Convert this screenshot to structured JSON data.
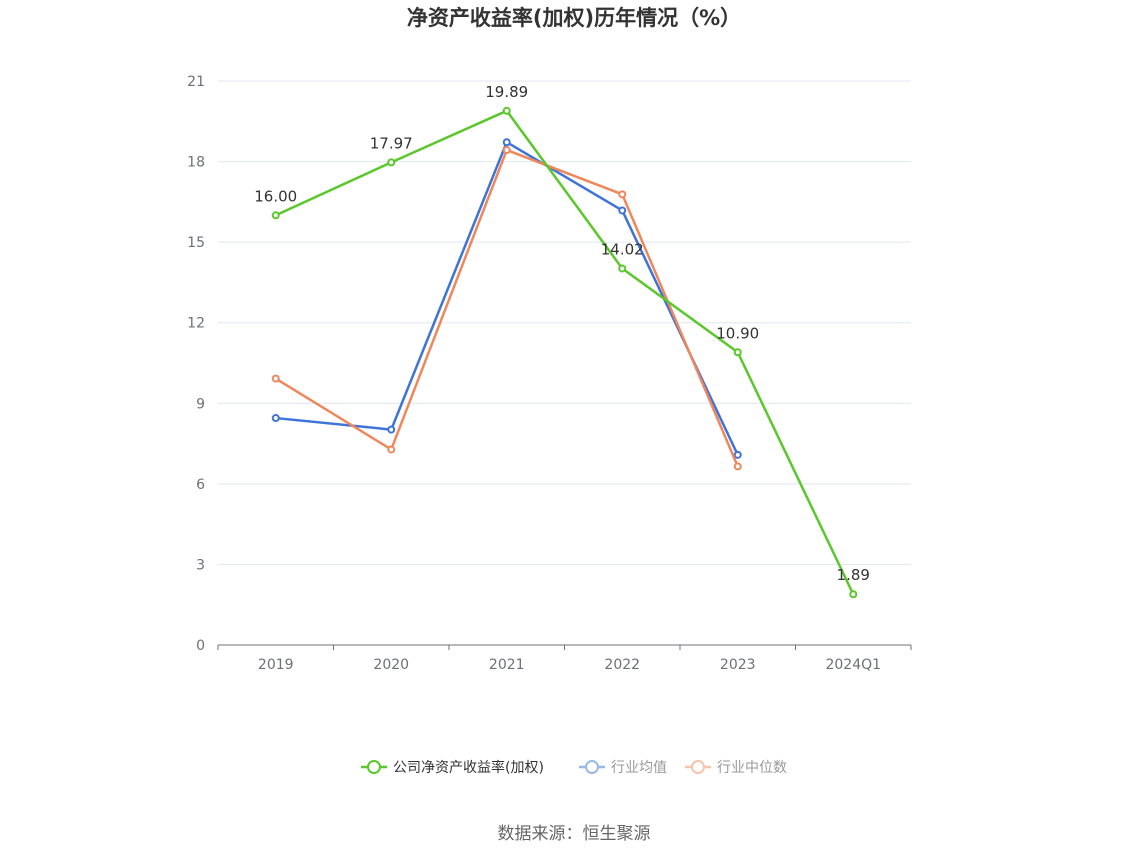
{
  "chart_data": {
    "type": "line",
    "title": "净资产收益率(加权)历年情况（%）",
    "categories": [
      "2019",
      "2020",
      "2021",
      "2022",
      "2023",
      "2024Q1"
    ],
    "ylim": [
      0,
      21
    ],
    "yticks": [
      0,
      3,
      6,
      9,
      12,
      15,
      18,
      21
    ],
    "grid": true,
    "legend_position": "bottom",
    "series": [
      {
        "name": "公司净资产收益率(加权)",
        "color": "#5ac72b",
        "values": [
          16.0,
          17.97,
          19.89,
          14.02,
          10.9,
          1.89
        ],
        "labels": [
          "16.00",
          "17.97",
          "19.89",
          "14.02",
          "10.90",
          "1.89"
        ],
        "legend_color": "#5ac72b",
        "legend_text_color": "#333333"
      },
      {
        "name": "行业均值",
        "color": "#3e73d8",
        "values": [
          8.45,
          8.02,
          18.72,
          16.18,
          7.08,
          null
        ],
        "legend_color": "#9ab7ec",
        "legend_text_color": "#999999"
      },
      {
        "name": "行业中位数",
        "color": "#f0875a",
        "values": [
          9.92,
          7.28,
          18.43,
          16.78,
          6.65,
          null
        ],
        "legend_color": "#f7c3ad",
        "legend_text_color": "#999999"
      }
    ]
  },
  "source": "数据来源：恒生聚源"
}
